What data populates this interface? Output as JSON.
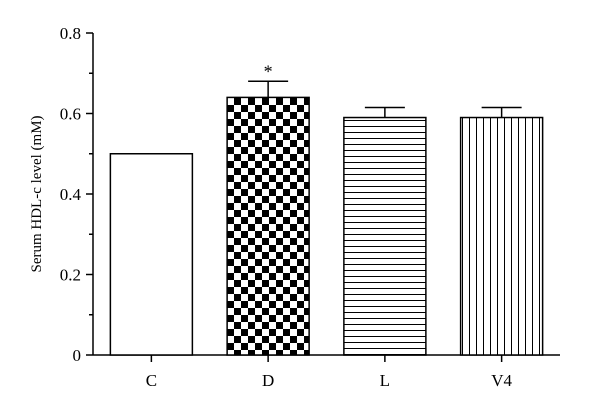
{
  "chart_data": {
    "type": "bar",
    "title": "",
    "xlabel": "",
    "ylabel": "Serum HDL-c level (mM)",
    "ylim": [
      0,
      0.8
    ],
    "yticks": [
      "0",
      "0.2",
      "0.4",
      "0.6",
      "0.8"
    ],
    "categories": [
      "C",
      "D",
      "L",
      "V4"
    ],
    "values": [
      0.5,
      0.64,
      0.59,
      0.59
    ],
    "error_upper": [
      0,
      0.04,
      0.025,
      0.025
    ],
    "fills": [
      "solid-white",
      "checkerboard",
      "horizontal-stripes",
      "vertical-stripes"
    ],
    "annotations": [
      {
        "category": "D",
        "text": "*"
      }
    ],
    "grid": false,
    "legend": "none"
  }
}
